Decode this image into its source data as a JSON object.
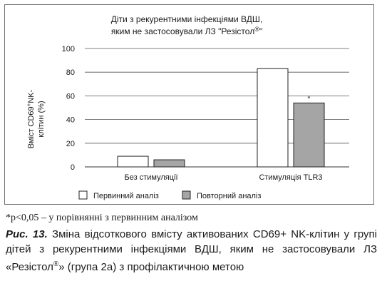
{
  "chart_data": {
    "type": "bar",
    "title_line1": "Діти з рекурентними інфекціями ВДШ,",
    "title_line2_main": "яким не застосовували ЛЗ \"Резістол",
    "title_line2_reg": "®",
    "title_line2_end": "\"",
    "ylabel_line1": "Вміст CD69",
    "ylabel_sup": "+",
    "ylabel_line1_end": "NK-",
    "ylabel_line2": "клітин (%)",
    "ylim": [
      0,
      100
    ],
    "yticks": [
      0,
      20,
      40,
      60,
      80,
      100
    ],
    "categories": [
      "Без стимуляції",
      "Стимуляція  TLR3"
    ],
    "series": [
      {
        "name": "Первинний аналіз",
        "values": [
          9,
          83
        ],
        "color": "#ffffff"
      },
      {
        "name": "Повторний аналіз",
        "values": [
          6,
          54
        ],
        "color": "#a5a5a5"
      }
    ],
    "annotations": [
      {
        "series": 1,
        "category": 1,
        "text": "*"
      }
    ],
    "grid": true,
    "legend_position": "bottom"
  },
  "footnote": "*p<0,05 – у порівнянні з первинним аналізом",
  "caption": {
    "label": "Рис. 13.",
    "text_before_reg": " Зміна відсоткового вмісту активованих CD69+ NK-клітин у групі дітей з рекурентними інфекціями ВДШ, яким не застосовували ЛЗ «Резістол",
    "reg": "®",
    "text_after_reg": "» (група 2а) з профілактичною метою"
  }
}
